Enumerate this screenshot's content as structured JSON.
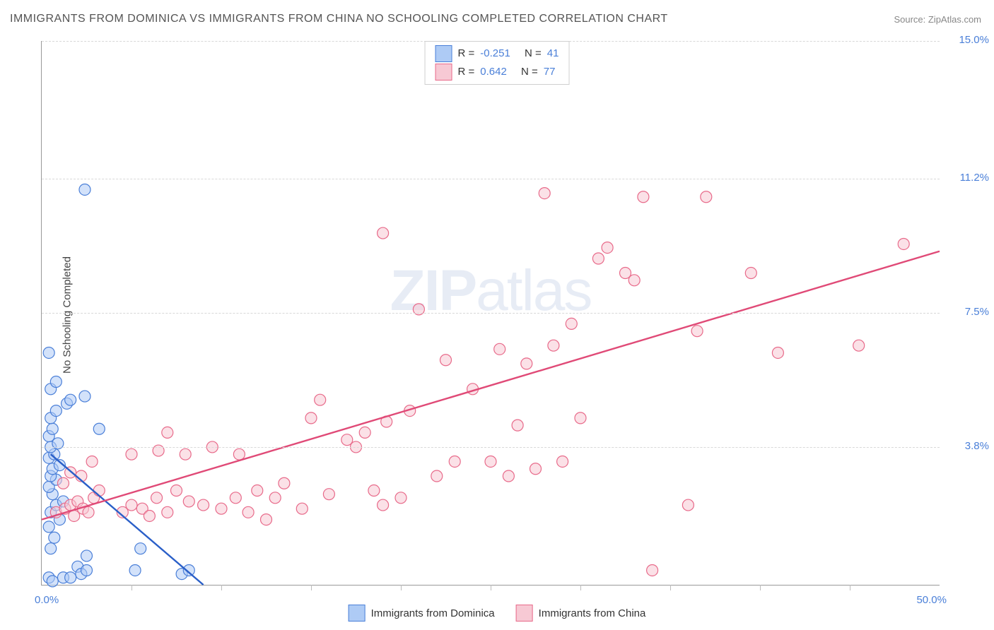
{
  "title": "IMMIGRANTS FROM DOMINICA VS IMMIGRANTS FROM CHINA NO SCHOOLING COMPLETED CORRELATION CHART",
  "source": "Source: ZipAtlas.com",
  "ylabel": "No Schooling Completed",
  "watermark_a": "ZIP",
  "watermark_b": "atlas",
  "chart": {
    "type": "scatter",
    "xlim": [
      0.0,
      50.0
    ],
    "ylim": [
      0.0,
      15.0
    ],
    "xtick_positions": [
      0,
      5,
      10,
      15,
      20,
      25,
      30,
      35,
      40,
      45,
      50
    ],
    "y_grid": [
      {
        "v": 3.8,
        "label": "3.8%"
      },
      {
        "v": 7.5,
        "label": "7.5%"
      },
      {
        "v": 11.2,
        "label": "11.2%"
      },
      {
        "v": 15.0,
        "label": "15.0%"
      }
    ],
    "xlim_labels": [
      "0.0%",
      "50.0%"
    ],
    "plot_bg": "#ffffff",
    "grid_color": "#d8d8d8",
    "axis_color": "#999999",
    "marker_radius": 8,
    "marker_stroke_width": 1.2,
    "series": [
      {
        "name": "Immigrants from Dominica",
        "fill": "#aecbf5",
        "stroke": "#4a7fd8",
        "fill_opacity": 0.55,
        "r_label": "R =",
        "r": "-0.251",
        "n_label": "N =",
        "n": "41",
        "regression": {
          "x1": 0.5,
          "y1": 3.6,
          "x2": 9.0,
          "y2": 0.0,
          "color": "#2a5fc8",
          "width": 2.4
        },
        "points": [
          [
            0.4,
            0.2
          ],
          [
            0.6,
            0.1
          ],
          [
            1.2,
            0.2
          ],
          [
            1.6,
            0.2
          ],
          [
            2.0,
            0.5
          ],
          [
            2.2,
            0.3
          ],
          [
            2.5,
            0.8
          ],
          [
            0.5,
            1.0
          ],
          [
            0.7,
            1.3
          ],
          [
            0.4,
            1.6
          ],
          [
            1.0,
            1.8
          ],
          [
            0.5,
            2.0
          ],
          [
            0.8,
            2.2
          ],
          [
            1.2,
            2.3
          ],
          [
            0.6,
            2.5
          ],
          [
            0.4,
            2.7
          ],
          [
            0.8,
            2.9
          ],
          [
            0.5,
            3.0
          ],
          [
            0.6,
            3.2
          ],
          [
            1.0,
            3.3
          ],
          [
            0.4,
            3.5
          ],
          [
            0.7,
            3.6
          ],
          [
            0.5,
            3.8
          ],
          [
            0.9,
            3.9
          ],
          [
            0.4,
            4.1
          ],
          [
            0.6,
            4.3
          ],
          [
            3.2,
            4.3
          ],
          [
            0.5,
            4.6
          ],
          [
            0.8,
            4.8
          ],
          [
            1.4,
            5.0
          ],
          [
            1.6,
            5.1
          ],
          [
            2.4,
            5.2
          ],
          [
            0.5,
            5.4
          ],
          [
            0.8,
            5.6
          ],
          [
            0.4,
            6.4
          ],
          [
            2.5,
            0.4
          ],
          [
            5.2,
            0.4
          ],
          [
            5.5,
            1.0
          ],
          [
            7.8,
            0.3
          ],
          [
            8.2,
            0.4
          ],
          [
            2.4,
            10.9
          ]
        ]
      },
      {
        "name": "Immigrants from China",
        "fill": "#f7c9d4",
        "stroke": "#e86a8a",
        "fill_opacity": 0.55,
        "r_label": "R =",
        "r": "0.642",
        "n_label": "N =",
        "n": "77",
        "regression": {
          "x1": 0.0,
          "y1": 1.8,
          "x2": 50.0,
          "y2": 9.2,
          "color": "#e04a77",
          "width": 2.4
        },
        "points": [
          [
            0.8,
            2.0
          ],
          [
            1.3,
            2.1
          ],
          [
            1.6,
            2.2
          ],
          [
            1.8,
            1.9
          ],
          [
            2.0,
            2.3
          ],
          [
            2.3,
            2.1
          ],
          [
            2.6,
            2.0
          ],
          [
            2.9,
            2.4
          ],
          [
            3.2,
            2.6
          ],
          [
            2.8,
            3.4
          ],
          [
            1.2,
            2.8
          ],
          [
            1.6,
            3.1
          ],
          [
            2.2,
            3.0
          ],
          [
            4.5,
            2.0
          ],
          [
            5.0,
            2.2
          ],
          [
            5.6,
            2.1
          ],
          [
            6.0,
            1.9
          ],
          [
            6.4,
            2.4
          ],
          [
            7.0,
            2.0
          ],
          [
            7.5,
            2.6
          ],
          [
            8.2,
            2.3
          ],
          [
            9.0,
            2.2
          ],
          [
            10.0,
            2.1
          ],
          [
            10.8,
            2.4
          ],
          [
            11.5,
            2.0
          ],
          [
            12.0,
            2.6
          ],
          [
            5.0,
            3.6
          ],
          [
            6.5,
            3.7
          ],
          [
            8.0,
            3.6
          ],
          [
            11.0,
            3.6
          ],
          [
            7.0,
            4.2
          ],
          [
            13.0,
            2.4
          ],
          [
            13.5,
            2.8
          ],
          [
            14.5,
            2.1
          ],
          [
            15.0,
            4.6
          ],
          [
            15.5,
            5.1
          ],
          [
            16.0,
            2.5
          ],
          [
            17.0,
            4.0
          ],
          [
            17.5,
            3.8
          ],
          [
            18.0,
            4.2
          ],
          [
            18.5,
            2.6
          ],
          [
            19.0,
            2.2
          ],
          [
            19.2,
            4.5
          ],
          [
            20.0,
            2.4
          ],
          [
            20.5,
            4.8
          ],
          [
            21.0,
            7.6
          ],
          [
            19.0,
            9.7
          ],
          [
            22.0,
            3.0
          ],
          [
            22.5,
            6.2
          ],
          [
            23.0,
            3.4
          ],
          [
            24.0,
            5.4
          ],
          [
            25.0,
            3.4
          ],
          [
            25.5,
            6.5
          ],
          [
            26.0,
            3.0
          ],
          [
            26.5,
            4.4
          ],
          [
            27.0,
            6.1
          ],
          [
            27.5,
            3.2
          ],
          [
            28.0,
            10.8
          ],
          [
            28.5,
            6.6
          ],
          [
            29.0,
            3.4
          ],
          [
            29.5,
            7.2
          ],
          [
            30.0,
            4.6
          ],
          [
            31.0,
            9.0
          ],
          [
            31.5,
            9.3
          ],
          [
            32.5,
            8.6
          ],
          [
            33.0,
            8.4
          ],
          [
            33.5,
            10.7
          ],
          [
            34.0,
            0.4
          ],
          [
            36.0,
            2.2
          ],
          [
            36.5,
            7.0
          ],
          [
            37.0,
            10.7
          ],
          [
            39.5,
            8.6
          ],
          [
            41.0,
            6.4
          ],
          [
            45.5,
            6.6
          ],
          [
            48.0,
            9.4
          ],
          [
            12.5,
            1.8
          ],
          [
            9.5,
            3.8
          ]
        ]
      }
    ]
  },
  "legend_top_layout": {
    "border_color": "#cfcfcf",
    "font_size": 15
  },
  "legend_bottom_layout": {
    "font_size": 15
  }
}
